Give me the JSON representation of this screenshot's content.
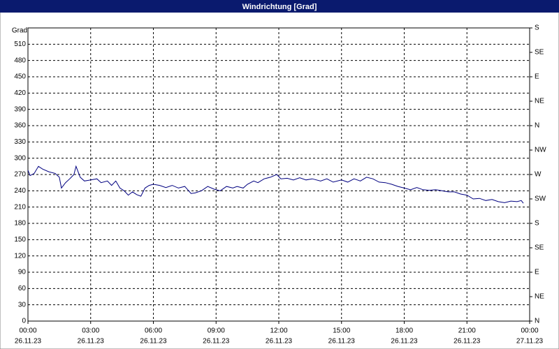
{
  "chart_data": {
    "type": "line",
    "title": "Windrichtung [Grad]",
    "y_label": "Grad",
    "x": [
      0,
      0.1,
      0.3,
      0.5,
      0.7,
      1.0,
      1.3,
      1.5,
      1.6,
      1.8,
      2.0,
      2.2,
      2.3,
      2.5,
      2.7,
      3.0,
      3.3,
      3.5,
      3.8,
      4.0,
      4.2,
      4.4,
      4.6,
      4.8,
      5.0,
      5.2,
      5.4,
      5.6,
      5.8,
      6.0,
      6.3,
      6.6,
      6.9,
      7.2,
      7.5,
      7.8,
      8.0,
      8.3,
      8.6,
      8.9,
      9.2,
      9.5,
      9.8,
      10.0,
      10.3,
      10.5,
      10.8,
      11.0,
      11.3,
      11.6,
      11.9,
      12.1,
      12.4,
      12.7,
      13.0,
      13.3,
      13.6,
      14.0,
      14.3,
      14.6,
      15.0,
      15.3,
      15.6,
      15.9,
      16.2,
      16.5,
      16.8,
      17.1,
      17.4,
      17.7,
      18.0,
      18.3,
      18.6,
      18.9,
      19.2,
      19.5,
      19.8,
      20.1,
      20.4,
      20.7,
      21.0,
      21.3,
      21.6,
      21.9,
      22.2,
      22.5,
      22.8,
      23.1,
      23.4,
      23.6,
      23.7
    ],
    "series": [
      {
        "name": "Windrichtung",
        "color": "#000080",
        "values": [
          278,
          268,
          272,
          285,
          280,
          275,
          272,
          265,
          245,
          255,
          262,
          270,
          285,
          265,
          258,
          260,
          262,
          255,
          258,
          250,
          258,
          245,
          240,
          232,
          238,
          233,
          230,
          245,
          250,
          252,
          250,
          246,
          250,
          245,
          248,
          235,
          236,
          240,
          248,
          243,
          240,
          248,
          245,
          248,
          245,
          252,
          258,
          255,
          262,
          265,
          270,
          262,
          263,
          260,
          264,
          260,
          262,
          258,
          262,
          256,
          260,
          256,
          262,
          258,
          265,
          262,
          256,
          255,
          252,
          248,
          245,
          242,
          246,
          242,
          241,
          242,
          240,
          238,
          238,
          234,
          232,
          225,
          226,
          222,
          224,
          220,
          218,
          221,
          220,
          222,
          217
        ]
      }
    ],
    "xlim": [
      0,
      24
    ],
    "ylim": [
      0,
      540
    ],
    "y2lim": [
      0,
      540
    ],
    "xticks": [
      {
        "value": 0,
        "label": [
          "00:00",
          "26.11.23"
        ]
      },
      {
        "value": 3,
        "label": [
          "03:00",
          "26.11.23"
        ]
      },
      {
        "value": 6,
        "label": [
          "06:00",
          "26.11.23"
        ]
      },
      {
        "value": 9,
        "label": [
          "09:00",
          "26.11.23"
        ]
      },
      {
        "value": 12,
        "label": [
          "12:00",
          "26.11.23"
        ]
      },
      {
        "value": 15,
        "label": [
          "15:00",
          "26.11.23"
        ]
      },
      {
        "value": 18,
        "label": [
          "18:00",
          "26.11.23"
        ]
      },
      {
        "value": 21,
        "label": [
          "21:00",
          "26.11.23"
        ]
      },
      {
        "value": 24,
        "label": [
          "00:00",
          "27.11.23"
        ]
      }
    ],
    "yticks": [
      0,
      30,
      60,
      90,
      120,
      150,
      180,
      210,
      240,
      270,
      300,
      330,
      360,
      390,
      420,
      450,
      480,
      510
    ],
    "y2ticks": [
      {
        "value": 0,
        "label": "N"
      },
      {
        "value": 45,
        "label": "NE"
      },
      {
        "value": 90,
        "label": "E"
      },
      {
        "value": 135,
        "label": "SE"
      },
      {
        "value": 180,
        "label": "S"
      },
      {
        "value": 225,
        "label": "SW"
      },
      {
        "value": 270,
        "label": "W"
      },
      {
        "value": 315,
        "label": "NW"
      },
      {
        "value": 360,
        "label": "N"
      },
      {
        "value": 405,
        "label": "NE"
      },
      {
        "value": 450,
        "label": "E"
      },
      {
        "value": 495,
        "label": "SE"
      },
      {
        "value": 540,
        "label": "S"
      }
    ],
    "grid": true
  }
}
